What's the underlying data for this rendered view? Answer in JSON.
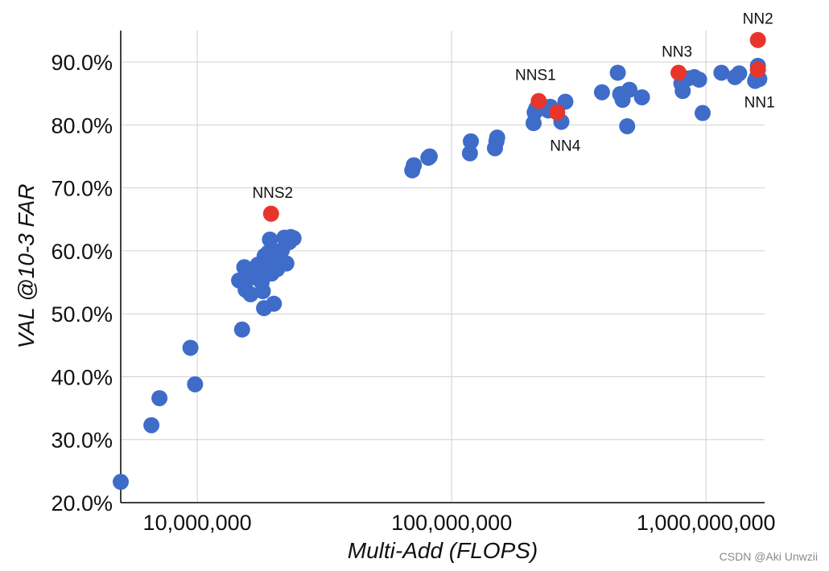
{
  "chart_data": {
    "type": "scatter",
    "title": "",
    "xlabel": "Multi-Add (FLOPS)",
    "ylabel": "VAL @10-3 FAR",
    "x_scale": "log",
    "xlim": [
      5000000,
      1700000000
    ],
    "ylim": [
      20,
      95
    ],
    "x_ticks": [
      10000000,
      100000000,
      1000000000
    ],
    "x_tick_labels": [
      "10,000,000",
      "100,000,000",
      "1,000,000,000"
    ],
    "y_ticks": [
      20,
      30,
      40,
      50,
      60,
      70,
      80,
      90
    ],
    "y_tick_labels": [
      "20.0%",
      "30.0%",
      "40.0%",
      "50.0%",
      "60.0%",
      "70.0%",
      "80.0%",
      "90.0%"
    ],
    "grid": true,
    "colors": {
      "series": "#3f6cc9",
      "highlight": "#e8352b",
      "grid": "#d0d0d0"
    },
    "series": [
      {
        "points": [
          [
            5000000,
            23.3
          ],
          [
            6600000,
            32.3
          ],
          [
            7100000,
            36.6
          ],
          [
            9400000,
            44.6
          ],
          [
            9800000,
            38.8
          ],
          [
            15000000,
            47.5
          ],
          [
            14600000,
            55.3
          ],
          [
            15300000,
            57.4
          ],
          [
            15500000,
            53.8
          ],
          [
            16200000,
            53.1
          ],
          [
            16500000,
            55.8
          ],
          [
            16900000,
            56.9
          ],
          [
            17300000,
            57.8
          ],
          [
            17500000,
            56.4
          ],
          [
            17900000,
            55.0
          ],
          [
            18100000,
            53.6
          ],
          [
            18300000,
            50.9
          ],
          [
            18400000,
            59.2
          ],
          [
            18600000,
            57.5
          ],
          [
            18800000,
            58.2
          ],
          [
            19000000,
            59.7
          ],
          [
            19300000,
            61.8
          ],
          [
            19600000,
            56.4
          ],
          [
            19800000,
            57.9
          ],
          [
            20000000,
            51.6
          ],
          [
            20300000,
            59.9
          ],
          [
            20600000,
            57.1
          ],
          [
            21000000,
            58.9
          ],
          [
            21500000,
            60.1
          ],
          [
            22000000,
            62.1
          ],
          [
            22400000,
            58.0
          ],
          [
            23000000,
            61.4
          ],
          [
            23300000,
            62.2
          ],
          [
            23900000,
            62.0
          ],
          [
            70000000,
            72.8
          ],
          [
            71000000,
            73.6
          ],
          [
            81000000,
            74.8
          ],
          [
            82000000,
            75.0
          ],
          [
            118000000,
            75.5
          ],
          [
            119000000,
            77.4
          ],
          [
            148000000,
            76.3
          ],
          [
            150000000,
            77.4
          ],
          [
            151000000,
            78.0
          ],
          [
            210000000,
            80.3
          ],
          [
            212000000,
            82.0
          ],
          [
            215000000,
            82.6
          ],
          [
            240000000,
            82.3
          ],
          [
            244000000,
            82.9
          ],
          [
            270000000,
            80.5
          ],
          [
            280000000,
            83.7
          ],
          [
            390000000,
            85.2
          ],
          [
            450000000,
            88.3
          ],
          [
            460000000,
            84.9
          ],
          [
            470000000,
            84.0
          ],
          [
            490000000,
            79.8
          ],
          [
            500000000,
            85.6
          ],
          [
            560000000,
            84.4
          ],
          [
            800000000,
            86.6
          ],
          [
            810000000,
            85.4
          ],
          [
            850000000,
            87.4
          ],
          [
            900000000,
            87.6
          ],
          [
            940000000,
            87.2
          ],
          [
            970000000,
            81.9
          ],
          [
            1150000000,
            88.3
          ],
          [
            1300000000,
            87.6
          ],
          [
            1350000000,
            88.2
          ],
          [
            1560000000,
            87.0
          ],
          [
            1580000000,
            87.5
          ],
          [
            1600000000,
            89.4
          ],
          [
            1620000000,
            87.3
          ]
        ]
      },
      {
        "points": [
          {
            "x": 1600000000,
            "y": 88.8,
            "label": "NN1"
          },
          {
            "x": 1600000000,
            "y": 93.5,
            "label": "NN2"
          },
          {
            "x": 780000000,
            "y": 88.3,
            "label": "NN3"
          },
          {
            "x": 260000000,
            "y": 82.0,
            "label": "NN4"
          },
          {
            "x": 220000000,
            "y": 83.8,
            "label": "NNS1"
          },
          {
            "x": 19500000,
            "y": 65.9,
            "label": "NNS2"
          }
        ]
      }
    ]
  },
  "watermark": "CSDN @Aki Unwzii"
}
